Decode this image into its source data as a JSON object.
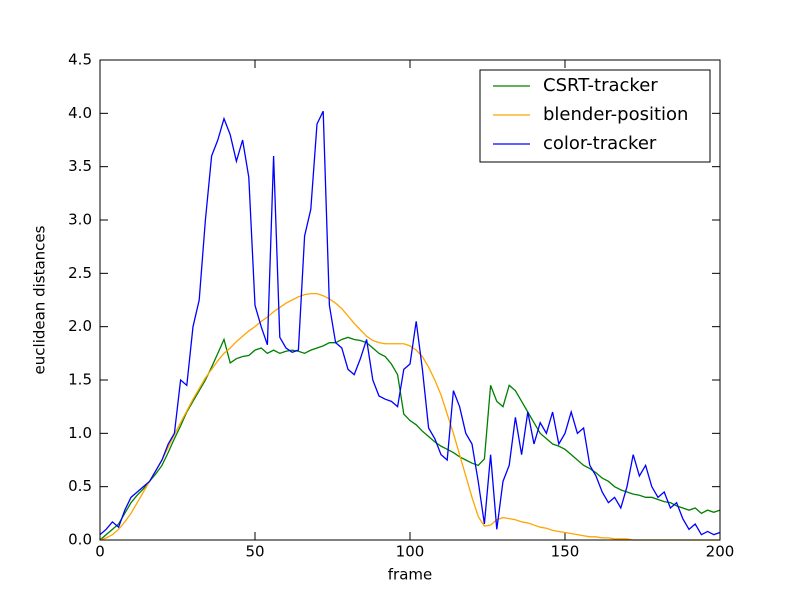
{
  "chart_data": {
    "type": "line",
    "xlabel": "frame",
    "ylabel": "euclidean distances",
    "x": [
      0,
      2,
      4,
      6,
      8,
      10,
      12,
      14,
      16,
      18,
      20,
      22,
      24,
      26,
      28,
      30,
      32,
      34,
      36,
      38,
      40,
      42,
      44,
      46,
      48,
      50,
      52,
      54,
      56,
      58,
      60,
      62,
      64,
      66,
      68,
      70,
      72,
      74,
      76,
      78,
      80,
      82,
      84,
      86,
      88,
      90,
      92,
      94,
      96,
      98,
      100,
      102,
      104,
      106,
      108,
      110,
      112,
      114,
      116,
      118,
      120,
      122,
      124,
      126,
      128,
      130,
      132,
      134,
      136,
      138,
      140,
      142,
      144,
      146,
      148,
      150,
      152,
      154,
      156,
      158,
      160,
      162,
      164,
      166,
      168,
      170,
      172,
      174,
      176,
      178,
      180,
      182,
      184,
      186,
      188,
      190,
      192,
      194,
      196,
      198,
      200
    ],
    "series": [
      {
        "name": "CSRT-tracker",
        "color": "#008000",
        "values": [
          0,
          0.05,
          0.1,
          0.15,
          0.25,
          0.35,
          0.42,
          0.48,
          0.55,
          0.62,
          0.7,
          0.82,
          0.95,
          1.07,
          1.2,
          1.3,
          1.4,
          1.5,
          1.62,
          1.75,
          1.88,
          1.66,
          1.7,
          1.72,
          1.73,
          1.78,
          1.8,
          1.75,
          1.78,
          1.75,
          1.77,
          1.78,
          1.77,
          1.75,
          1.78,
          1.8,
          1.82,
          1.85,
          1.85,
          1.88,
          1.9,
          1.88,
          1.87,
          1.85,
          1.8,
          1.75,
          1.72,
          1.65,
          1.55,
          1.18,
          1.12,
          1.08,
          1.02,
          0.97,
          0.92,
          0.88,
          0.85,
          0.82,
          0.78,
          0.75,
          0.72,
          0.7,
          0.76,
          1.45,
          1.3,
          1.25,
          1.45,
          1.4,
          1.3,
          1.2,
          1.1,
          1.0,
          0.95,
          0.9,
          0.88,
          0.85,
          0.8,
          0.75,
          0.7,
          0.67,
          0.63,
          0.58,
          0.55,
          0.5,
          0.47,
          0.45,
          0.43,
          0.42,
          0.4,
          0.4,
          0.38,
          0.36,
          0.35,
          0.32,
          0.3,
          0.28,
          0.3,
          0.25,
          0.28,
          0.26,
          0.28
        ]
      },
      {
        "name": "blender-position",
        "color": "#ffa500",
        "values": [
          0,
          0.02,
          0.05,
          0.1,
          0.17,
          0.25,
          0.35,
          0.45,
          0.55,
          0.65,
          0.75,
          0.87,
          0.99,
          1.1,
          1.21,
          1.32,
          1.42,
          1.52,
          1.6,
          1.68,
          1.75,
          1.8,
          1.86,
          1.91,
          1.96,
          2.0,
          2.05,
          2.09,
          2.14,
          2.18,
          2.22,
          2.25,
          2.28,
          2.3,
          2.31,
          2.31,
          2.29,
          2.26,
          2.22,
          2.17,
          2.1,
          2.03,
          1.97,
          1.91,
          1.87,
          1.85,
          1.84,
          1.84,
          1.84,
          1.84,
          1.82,
          1.78,
          1.72,
          1.62,
          1.5,
          1.36,
          1.18,
          1.0,
          0.8,
          0.6,
          0.4,
          0.22,
          0.13,
          0.14,
          0.19,
          0.21,
          0.2,
          0.19,
          0.17,
          0.16,
          0.14,
          0.12,
          0.11,
          0.09,
          0.08,
          0.07,
          0.06,
          0.05,
          0.04,
          0.03,
          0.03,
          0.02,
          0.02,
          0.01,
          0.01,
          0.01,
          0,
          0,
          0,
          0,
          0,
          0,
          0,
          0,
          0,
          0,
          0,
          0,
          0,
          0,
          0
        ]
      },
      {
        "name": "color-tracker",
        "color": "#0000ff",
        "values": [
          0.05,
          0.1,
          0.17,
          0.12,
          0.28,
          0.4,
          0.45,
          0.5,
          0.55,
          0.65,
          0.75,
          0.9,
          1.0,
          1.5,
          1.45,
          2.0,
          2.25,
          3.0,
          3.6,
          3.75,
          3.95,
          3.8,
          3.55,
          3.75,
          3.4,
          2.2,
          2.0,
          1.83,
          3.6,
          1.9,
          1.8,
          1.76,
          1.78,
          2.85,
          3.1,
          3.9,
          4.02,
          2.2,
          1.85,
          1.8,
          1.6,
          1.55,
          1.7,
          1.88,
          1.5,
          1.35,
          1.32,
          1.3,
          1.25,
          1.6,
          1.65,
          2.05,
          1.6,
          1.05,
          0.95,
          0.8,
          0.75,
          1.4,
          1.25,
          1.0,
          0.9,
          0.55,
          0.15,
          0.8,
          0.1,
          0.55,
          0.7,
          1.15,
          0.8,
          1.2,
          0.9,
          1.1,
          1.0,
          1.2,
          0.9,
          1.0,
          1.2,
          1.0,
          1.05,
          0.7,
          0.6,
          0.45,
          0.35,
          0.4,
          0.3,
          0.5,
          0.8,
          0.6,
          0.7,
          0.5,
          0.4,
          0.45,
          0.3,
          0.35,
          0.2,
          0.1,
          0.15,
          0.05,
          0.08,
          0.05,
          0.07
        ]
      }
    ],
    "xlim": [
      0,
      200
    ],
    "xticks": [
      0,
      50,
      100,
      150,
      200
    ],
    "ylim": [
      0,
      4.5
    ],
    "yticks": [
      {
        "value": 0,
        "label": "0.0"
      },
      {
        "value": 0.5,
        "label": "0.5"
      },
      {
        "value": 1,
        "label": "1.0"
      },
      {
        "value": 1.5,
        "label": "1.5"
      },
      {
        "value": 2,
        "label": "2.0"
      },
      {
        "value": 2.5,
        "label": "2.5"
      },
      {
        "value": 3,
        "label": "3.0"
      },
      {
        "value": 3.5,
        "label": "3.5"
      },
      {
        "value": 4,
        "label": "4.0"
      },
      {
        "value": 4.5,
        "label": "4.5"
      }
    ],
    "grid": false,
    "legend": "upper right"
  }
}
